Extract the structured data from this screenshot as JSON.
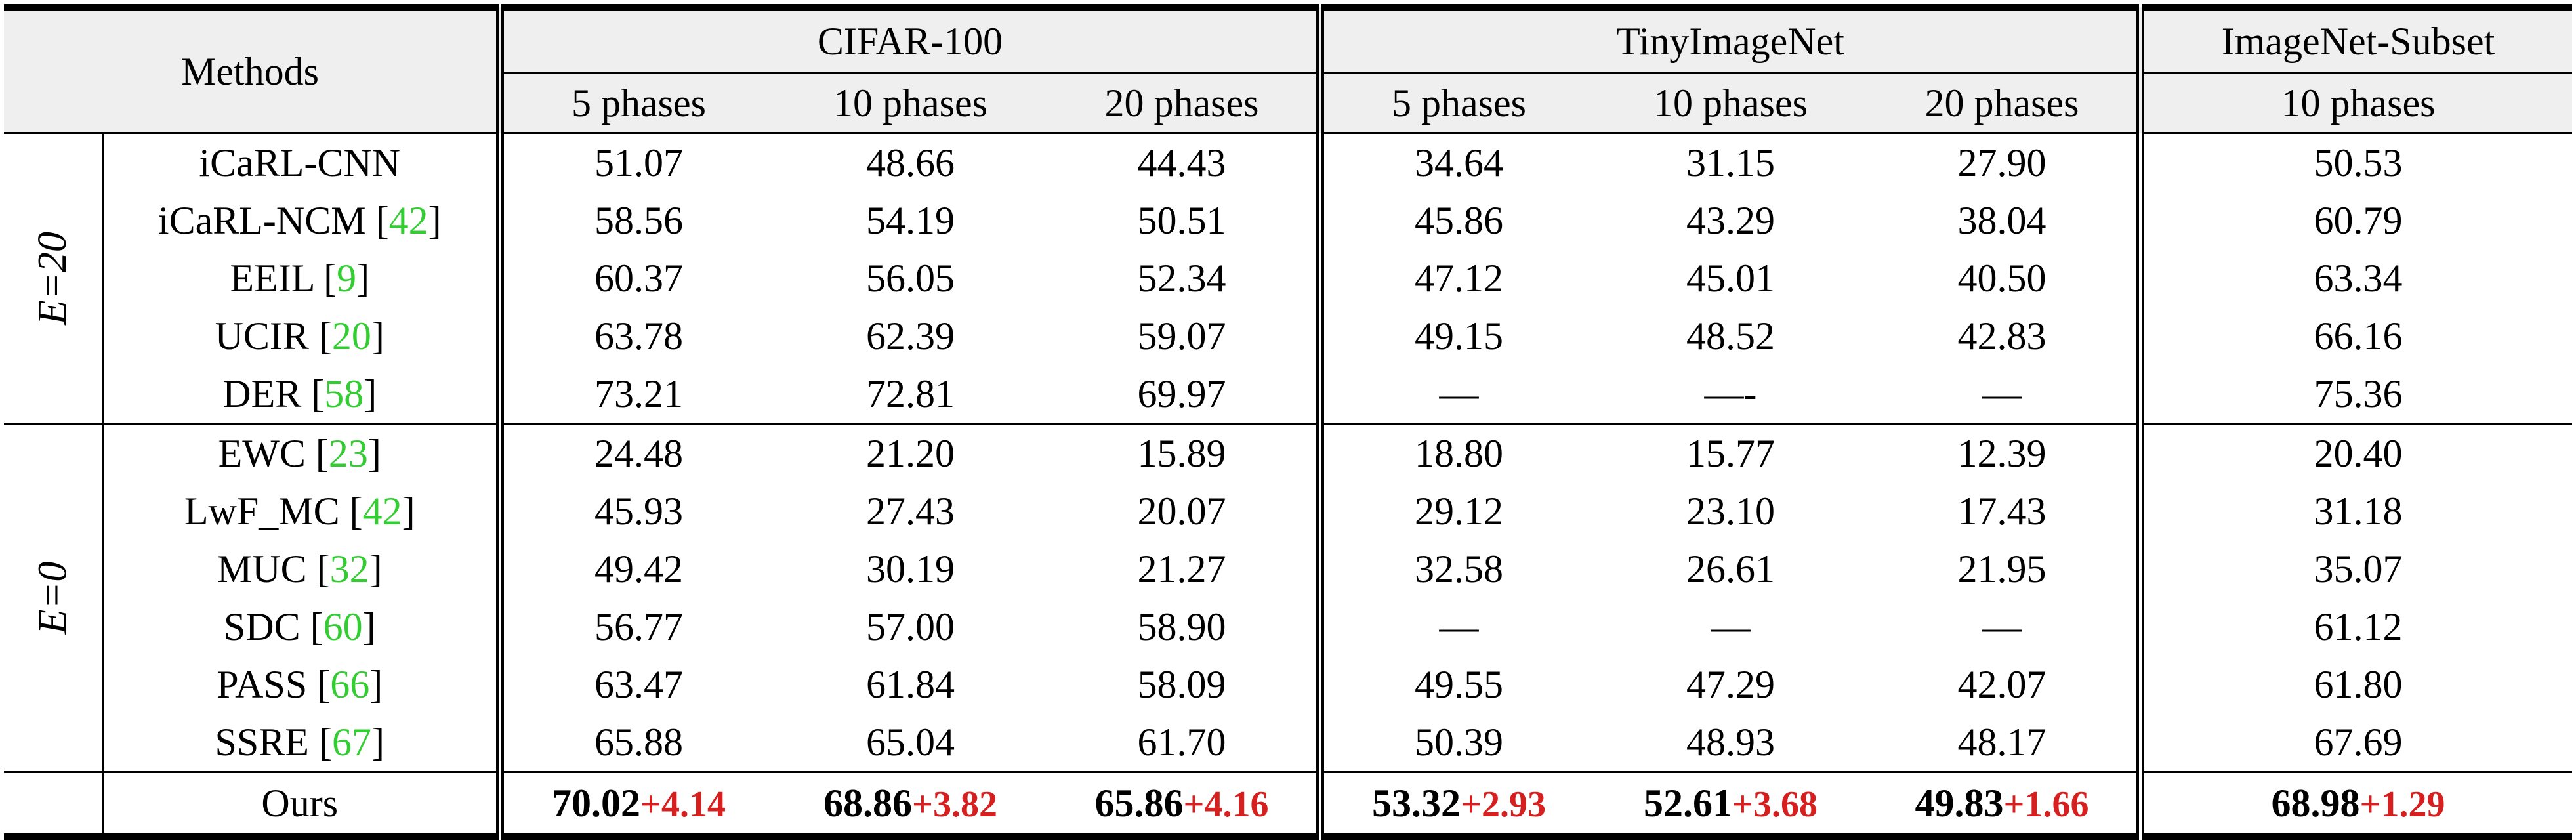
{
  "header": {
    "methods": "Methods",
    "datasets": [
      {
        "name": "CIFAR-100",
        "phases": [
          "5 phases",
          "10 phases",
          "20 phases"
        ]
      },
      {
        "name": "TinyImageNet",
        "phases": [
          "5 phases",
          "10 phases",
          "20 phases"
        ]
      },
      {
        "name": "ImageNet-Subset",
        "phases": [
          "10 phases"
        ]
      }
    ]
  },
  "groups": [
    {
      "label": "E=20",
      "rows": [
        {
          "method": "iCaRL-CNN",
          "cite": "",
          "values": [
            "51.07",
            "48.66",
            "44.43",
            "34.64",
            "31.15",
            "27.90",
            "50.53"
          ]
        },
        {
          "method": "iCaRL-NCM",
          "cite": "42",
          "values": [
            "58.56",
            "54.19",
            "50.51",
            "45.86",
            "43.29",
            "38.04",
            "60.79"
          ]
        },
        {
          "method": "EEIL",
          "cite": "9",
          "values": [
            "60.37",
            "56.05",
            "52.34",
            "47.12",
            "45.01",
            "40.50",
            "63.34"
          ]
        },
        {
          "method": "UCIR",
          "cite": "20",
          "values": [
            "63.78",
            "62.39",
            "59.07",
            "49.15",
            "48.52",
            "42.83",
            "66.16"
          ]
        },
        {
          "method": "DER",
          "cite": "58",
          "values": [
            "73.21",
            "72.81",
            "69.97",
            "—",
            "—-",
            "—",
            "75.36"
          ]
        }
      ]
    },
    {
      "label": "E=0",
      "rows": [
        {
          "method": "EWC",
          "cite": "23",
          "values": [
            "24.48",
            "21.20",
            "15.89",
            "18.80",
            "15.77",
            "12.39",
            "20.40"
          ]
        },
        {
          "method": "LwF_MC",
          "cite": "42",
          "values": [
            "45.93",
            "27.43",
            "20.07",
            "29.12",
            "23.10",
            "17.43",
            "31.18"
          ]
        },
        {
          "method": "MUC",
          "cite": "32",
          "values": [
            "49.42",
            "30.19",
            "21.27",
            "32.58",
            "26.61",
            "21.95",
            "35.07"
          ]
        },
        {
          "method": "SDC",
          "cite": "60",
          "values": [
            "56.77",
            "57.00",
            "58.90",
            "—",
            "—",
            "—",
            "61.12"
          ]
        },
        {
          "method": "PASS",
          "cite": "66",
          "values": [
            "63.47",
            "61.84",
            "58.09",
            "49.55",
            "47.29",
            "42.07",
            "61.80"
          ]
        },
        {
          "method": "SSRE",
          "cite": "67",
          "values": [
            "65.88",
            "65.04",
            "61.70",
            "50.39",
            "48.93",
            "48.17",
            "67.69"
          ]
        }
      ]
    }
  ],
  "ours": {
    "method": "Ours",
    "values": [
      "70.02",
      "68.86",
      "65.86",
      "53.32",
      "52.61",
      "49.83",
      "68.98"
    ],
    "gains": [
      "+4.14",
      "+3.82",
      "+4.16",
      "+2.93",
      "+3.68",
      "+1.66",
      "+1.29"
    ]
  },
  "colors": {
    "citation": "#33cc33",
    "gain": "#d62020",
    "header_bg": "#efefef"
  }
}
